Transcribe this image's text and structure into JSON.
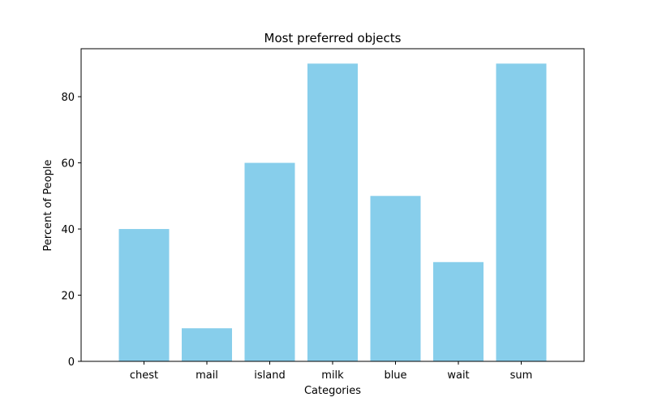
{
  "chart_data": {
    "type": "bar",
    "title": "Most preferred objects",
    "xlabel": "Categories",
    "ylabel": "Percent of People",
    "categories": [
      "chest",
      "mail",
      "island",
      "milk",
      "blue",
      "wait",
      "sum"
    ],
    "values": [
      40,
      10,
      60,
      90,
      50,
      30,
      90
    ],
    "ylim": [
      0,
      94.5
    ],
    "yticks": [
      0,
      20,
      40,
      60,
      80
    ],
    "bar_color": "#87ceeb",
    "grid": false,
    "legend": "none"
  }
}
